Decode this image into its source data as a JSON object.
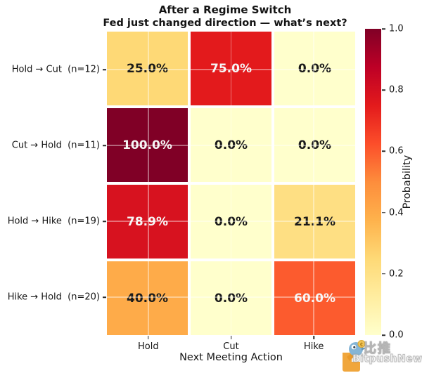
{
  "title": "After a Regime Switch",
  "subtitle": "Fed just changed direction — what’s next?",
  "chart_data": {
    "type": "heatmap",
    "title": "After a Regime Switch",
    "subtitle": "Fed just changed direction — what’s next?",
    "rows": [
      "Hold → Cut  (n=12)",
      "Cut → Hold  (n=11)",
      "Hold → Hike  (n=19)",
      "Hike → Hold  (n=20)"
    ],
    "columns": [
      "Hold",
      "Cut",
      "Hike"
    ],
    "values": [
      [
        0.25,
        0.75,
        0.0
      ],
      [
        1.0,
        0.0,
        0.0
      ],
      [
        0.789,
        0.0,
        0.211
      ],
      [
        0.4,
        0.0,
        0.6
      ]
    ],
    "cell_labels": [
      [
        "25.0%",
        "75.0%",
        "0.0%"
      ],
      [
        "100.0%",
        "0.0%",
        "0.0%"
      ],
      [
        "78.9%",
        "0.0%",
        "21.1%"
      ],
      [
        "40.0%",
        "0.0%",
        "60.0%"
      ]
    ],
    "xlabel": "Next Meeting Action",
    "ylabel": "",
    "grid": true,
    "colorbar": {
      "label": "Probability",
      "vmin": 0.0,
      "vmax": 1.0,
      "tick_values": [
        0.0,
        0.2,
        0.4,
        0.6,
        0.8,
        1.0
      ],
      "tick_labels": [
        "0.0",
        "0.2",
        "0.4",
        "0.6",
        "0.8",
        "1.0"
      ],
      "position": "right"
    },
    "colormap": {
      "name": "YlOrRd",
      "stops": [
        {
          "v": 0.0,
          "c": "#ffffcc"
        },
        {
          "v": 0.125,
          "c": "#ffeda0"
        },
        {
          "v": 0.25,
          "c": "#fed976"
        },
        {
          "v": 0.375,
          "c": "#feb24c"
        },
        {
          "v": 0.5,
          "c": "#fd8d3c"
        },
        {
          "v": 0.625,
          "c": "#fc4e2a"
        },
        {
          "v": 0.75,
          "c": "#e31a1c"
        },
        {
          "v": 0.875,
          "c": "#bd0026"
        },
        {
          "v": 1.0,
          "c": "#800026"
        }
      ],
      "annotation_dark_text": "#1a1a1a",
      "annotation_light_text": "#f5f5f5"
    }
  },
  "watermark": {
    "cn": "比推",
    "en": "BitpushNews",
    "colors": {
      "orange": "#f0a232",
      "blue": "#7fb2d4",
      "coin": "#f2c24e"
    }
  }
}
